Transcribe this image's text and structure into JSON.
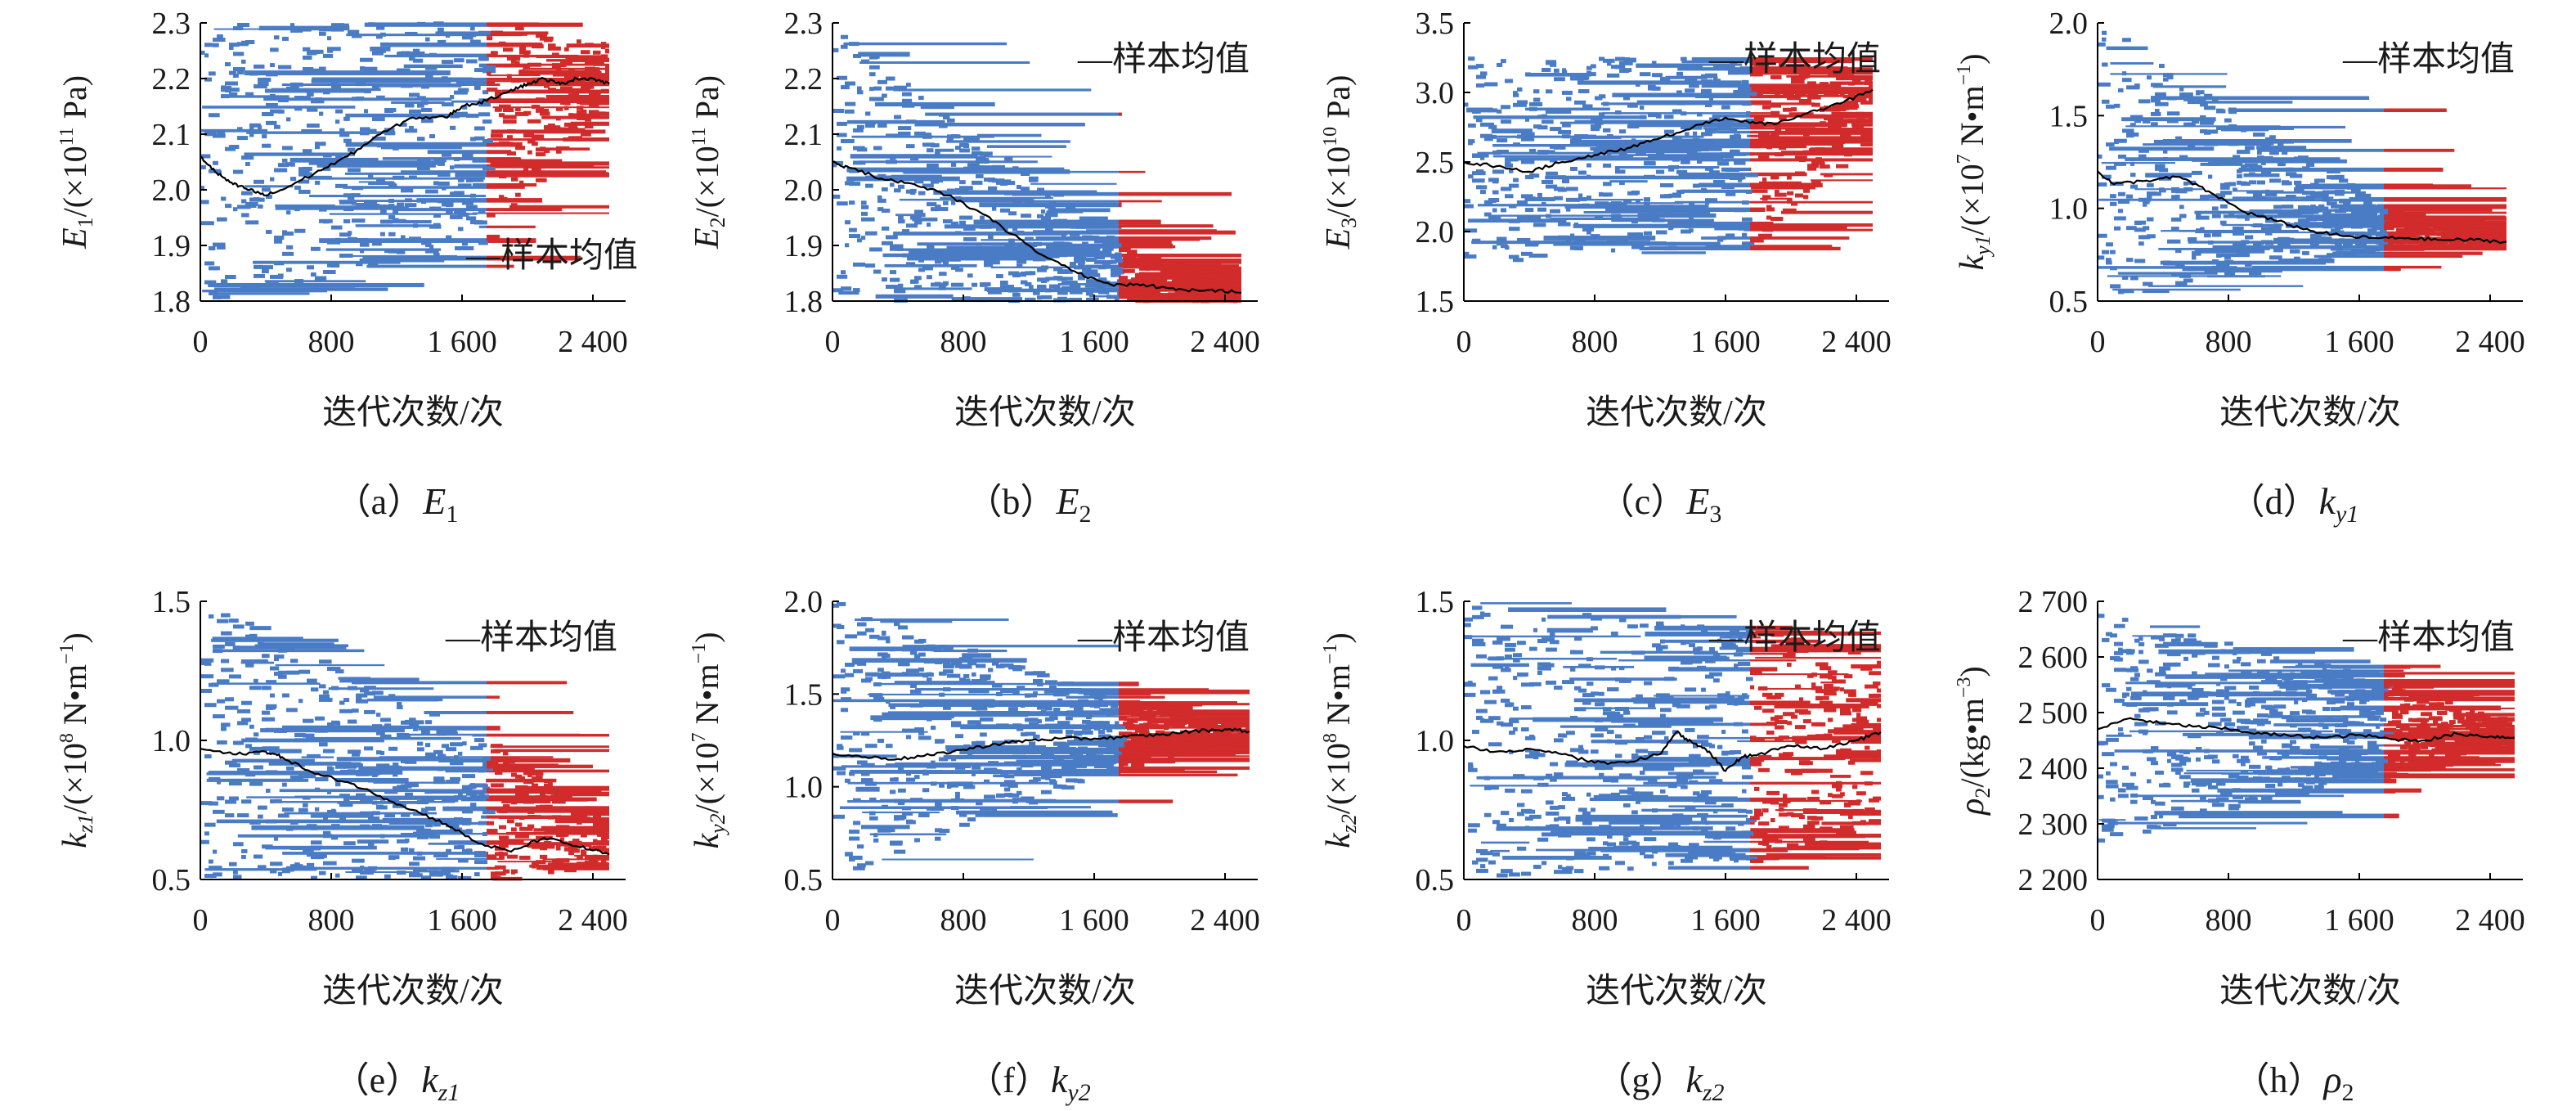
{
  "chart_data": [
    {
      "id": "a",
      "type": "line",
      "caption": {
        "prefix": "（a）",
        "symbol": "E",
        "sub": "1"
      },
      "ylabel": {
        "symbol": "E",
        "sub": "1",
        "unit": "/(×10",
        "exp": "11",
        "unit2": " Pa)"
      },
      "xlabel": "迭代次数/次",
      "ylim": [
        1.8,
        2.3
      ],
      "yticks": [
        "1.8",
        "1.9",
        "2.0",
        "2.1",
        "2.2",
        "2.3"
      ],
      "xlim": [
        0,
        2600
      ],
      "xticks": [
        0,
        800,
        1600,
        2400
      ],
      "xtick_labels": [
        "0",
        "800",
        "1 600",
        "2 400"
      ],
      "legend": {
        "label": "—样本均值",
        "position": "bottom-right"
      },
      "burn_in": 1750,
      "sample_spread": {
        "start": [
          1.8,
          2.3
        ],
        "burn_in": [
          1.9,
          2.3
        ],
        "end": [
          2.16,
          2.26
        ]
      },
      "series": [
        {
          "name": "样本均值",
          "color": "#000000",
          "x": [
            0,
            100,
            200,
            300,
            400,
            500,
            700,
            900,
            1100,
            1300,
            1500,
            1600,
            1750,
            1900,
            2000,
            2100,
            2200,
            2300,
            2400,
            2500
          ],
          "y": [
            2.06,
            2.03,
            2.01,
            2.0,
            1.99,
            2.0,
            2.03,
            2.06,
            2.1,
            2.13,
            2.13,
            2.15,
            2.16,
            2.18,
            2.19,
            2.2,
            2.19,
            2.2,
            2.2,
            2.19
          ]
        }
      ]
    },
    {
      "id": "b",
      "type": "line",
      "caption": {
        "prefix": "（b）",
        "symbol": "E",
        "sub": "2"
      },
      "ylabel": {
        "symbol": "E",
        "sub": "2",
        "unit": "/(×10",
        "exp": "11",
        "unit2": " Pa)"
      },
      "xlabel": "迭代次数/次",
      "ylim": [
        1.8,
        2.3
      ],
      "yticks": [
        "1.8",
        "1.9",
        "2.0",
        "2.1",
        "2.2",
        "2.3"
      ],
      "xlim": [
        0,
        2600
      ],
      "xticks": [
        0,
        800,
        1600,
        2400
      ],
      "xtick_labels": [
        "0",
        "800",
        "1 600",
        "2 400"
      ],
      "legend": {
        "label": "—样本均值",
        "position": "top-right"
      },
      "burn_in": 1750,
      "sample_spread": {
        "start": [
          1.8,
          2.3
        ],
        "burn_in": [
          1.8,
          1.9
        ],
        "end": [
          1.8,
          1.83
        ]
      },
      "series": [
        {
          "name": "样本均值",
          "color": "#000000",
          "x": [
            0,
            100,
            300,
            500,
            700,
            900,
            1100,
            1300,
            1500,
            1700,
            1900,
            2100,
            2300,
            2500
          ],
          "y": [
            2.05,
            2.04,
            2.02,
            2.01,
            1.99,
            1.96,
            1.92,
            1.88,
            1.85,
            1.83,
            1.83,
            1.82,
            1.82,
            1.815
          ]
        }
      ]
    },
    {
      "id": "c",
      "type": "line",
      "caption": {
        "prefix": "（c）",
        "symbol": "E",
        "sub": "3"
      },
      "ylabel": {
        "symbol": "E",
        "sub": "3",
        "unit": "/(×10",
        "exp": "10",
        "unit2": " Pa)"
      },
      "xlabel": "迭代次数/次",
      "ylim": [
        1.5,
        3.5
      ],
      "yticks": [
        "1.5",
        "2.0",
        "2.5",
        "3.0",
        "3.5"
      ],
      "xlim": [
        0,
        2600
      ],
      "xticks": [
        0,
        800,
        1600,
        2400
      ],
      "xtick_labels": [
        "0",
        "800",
        "1 600",
        "2 400"
      ],
      "legend": {
        "label": "—样本均值",
        "position": "top-right"
      },
      "burn_in": 1750,
      "sample_spread": {
        "start": [
          1.75,
          3.25
        ],
        "burn_in": [
          1.9,
          3.25
        ],
        "end": [
          2.7,
          3.1
        ]
      },
      "series": [
        {
          "name": "样本均值",
          "color": "#000000",
          "x": [
            0,
            200,
            400,
            600,
            800,
            1000,
            1200,
            1400,
            1600,
            1750,
            1900,
            2100,
            2300,
            2500
          ],
          "y": [
            2.5,
            2.47,
            2.43,
            2.5,
            2.55,
            2.6,
            2.67,
            2.75,
            2.82,
            2.78,
            2.77,
            2.85,
            2.92,
            3.02
          ]
        }
      ]
    },
    {
      "id": "d",
      "type": "line",
      "caption": {
        "prefix": "（d）",
        "symbol": "k",
        "sub": "y1"
      },
      "ylabel": {
        "symbol": "k",
        "sub": "y1",
        "unit": "/(×10",
        "exp": "7",
        "unit2": " N•m",
        "exp2": "−1",
        "unit3": ")"
      },
      "xlabel": "迭代次数/次",
      "ylim": [
        0.5,
        2.0
      ],
      "yticks": [
        "0.5",
        "1.0",
        "1.5",
        "2.0"
      ],
      "xlim": [
        0,
        2600
      ],
      "xticks": [
        0,
        800,
        1600,
        2400
      ],
      "xtick_labels": [
        "0",
        "800",
        "1 600",
        "2 400"
      ],
      "legend": {
        "label": "—样本均值",
        "position": "top-right"
      },
      "burn_in": 1750,
      "sample_spread": {
        "start": [
          0.5,
          2.0
        ],
        "burn_in": [
          0.78,
          1.0
        ],
        "end": [
          0.8,
          0.85
        ]
      },
      "series": [
        {
          "name": "样本均值",
          "color": "#000000",
          "x": [
            0,
            100,
            300,
            500,
            700,
            900,
            1100,
            1300,
            1500,
            1700,
            1900,
            2100,
            2300,
            2500
          ],
          "y": [
            1.2,
            1.13,
            1.15,
            1.17,
            1.08,
            0.98,
            0.93,
            0.88,
            0.85,
            0.84,
            0.84,
            0.83,
            0.83,
            0.82
          ]
        }
      ]
    },
    {
      "id": "e",
      "type": "line",
      "caption": {
        "prefix": "（e）",
        "symbol": "k",
        "sub": "z1"
      },
      "ylabel": {
        "symbol": "k",
        "sub": "z1",
        "unit": "/(×10",
        "exp": "8",
        "unit2": " N•m",
        "exp2": "−1",
        "unit3": ")"
      },
      "xlabel": "迭代次数/次",
      "ylim": [
        0.5,
        1.5
      ],
      "yticks": [
        "0.5",
        "1.0",
        "1.5"
      ],
      "xlim": [
        0,
        2600
      ],
      "xticks": [
        0,
        800,
        1600,
        2400
      ],
      "xtick_labels": [
        "0",
        "800",
        "1 600",
        "2 400"
      ],
      "legend": {
        "label": "—样本均值",
        "position": "top-right"
      },
      "burn_in": 1750,
      "sample_spread": {
        "start": [
          0.5,
          1.5
        ],
        "burn_in": [
          0.5,
          1.0
        ],
        "end": [
          0.55,
          0.7
        ]
      },
      "series": [
        {
          "name": "样本均值",
          "color": "#000000",
          "x": [
            0,
            200,
            400,
            500,
            700,
            900,
            1100,
            1300,
            1500,
            1700,
            1900,
            2100,
            2300,
            2500
          ],
          "y": [
            0.97,
            0.95,
            0.96,
            0.94,
            0.88,
            0.85,
            0.8,
            0.75,
            0.7,
            0.63,
            0.6,
            0.65,
            0.62,
            0.59
          ]
        }
      ]
    },
    {
      "id": "f",
      "type": "line",
      "caption": {
        "prefix": "（f）",
        "symbol": "k",
        "sub": "y2"
      },
      "ylabel": {
        "symbol": "k",
        "sub": "y2",
        "unit": "/(×10",
        "exp": "7",
        "unit2": " N•m",
        "exp2": "−1",
        "unit3": ")"
      },
      "xlabel": "迭代次数/次",
      "ylim": [
        0.5,
        2.0
      ],
      "yticks": [
        "0.5",
        "1.0",
        "1.5",
        "2.0"
      ],
      "xlim": [
        0,
        2600
      ],
      "xticks": [
        0,
        800,
        1600,
        2400
      ],
      "xtick_labels": [
        "0",
        "800",
        "1 600",
        "2 400"
      ],
      "legend": {
        "label": "—样本均值",
        "position": "top-right"
      },
      "burn_in": 1750,
      "sample_spread": {
        "start": [
          0.5,
          2.0
        ],
        "burn_in": [
          1.1,
          1.45
        ],
        "end": [
          1.28,
          1.32
        ]
      },
      "series": [
        {
          "name": "样本均值",
          "color": "#000000",
          "x": [
            0,
            200,
            400,
            600,
            800,
            1000,
            1200,
            1400,
            1600,
            1800,
            2000,
            2200,
            2400,
            2550
          ],
          "y": [
            1.18,
            1.16,
            1.15,
            1.17,
            1.2,
            1.23,
            1.25,
            1.26,
            1.26,
            1.27,
            1.28,
            1.3,
            1.31,
            1.3
          ]
        }
      ]
    },
    {
      "id": "g",
      "type": "line",
      "caption": {
        "prefix": "（g）",
        "symbol": "k",
        "sub": "z2"
      },
      "ylabel": {
        "symbol": "k",
        "sub": "z2",
        "unit": "/(×10",
        "exp": "8",
        "unit2": " N•m",
        "exp2": "−1",
        "unit3": ")"
      },
      "xlabel": "迭代次数/次",
      "ylim": [
        0.5,
        1.5
      ],
      "yticks": [
        "0.5",
        "1.0",
        "1.5"
      ],
      "xlim": [
        0,
        2600
      ],
      "xticks": [
        0,
        800,
        1600,
        2400
      ],
      "xtick_labels": [
        "0",
        "800",
        "1 600",
        "2 400"
      ],
      "legend": {
        "label": "—样本均值",
        "position": "top-right"
      },
      "burn_in": 1750,
      "sample_spread": {
        "start": [
          0.5,
          1.5
        ],
        "burn_in": [
          0.55,
          1.4
        ],
        "end": [
          0.7,
          1.3
        ]
      },
      "series": [
        {
          "name": "样本均值",
          "color": "#000000",
          "x": [
            0,
            200,
            400,
            600,
            800,
            1000,
            1200,
            1300,
            1400,
            1500,
            1600,
            1700,
            1800,
            2000,
            2200,
            2400,
            2550
          ],
          "y": [
            0.98,
            0.96,
            0.97,
            0.95,
            0.92,
            0.92,
            0.95,
            1.03,
            0.99,
            0.96,
            0.89,
            0.94,
            0.95,
            0.98,
            0.97,
            1.0,
            1.03
          ]
        }
      ]
    },
    {
      "id": "h",
      "type": "line",
      "caption": {
        "prefix": "（h）",
        "symbol": "ρ",
        "sub": "2"
      },
      "ylabel": {
        "symbol": "ρ",
        "sub": "2",
        "unit": "/(kg•m",
        "exp": "−3",
        "unit2": ")"
      },
      "xlabel": "迭代次数/次",
      "ylim": [
        2200,
        2700
      ],
      "yticks": [
        "2 200",
        "2 300",
        "2 400",
        "2 500",
        "2 600",
        "2 700"
      ],
      "xlim": [
        0,
        2600
      ],
      "xticks": [
        0,
        800,
        1600,
        2400
      ],
      "xtick_labels": [
        "0",
        "800",
        "1 600",
        "2 400"
      ],
      "legend": {
        "label": "—样本均值",
        "position": "top-right"
      },
      "burn_in": 1750,
      "sample_spread": {
        "start": [
          2260,
          2680
        ],
        "burn_in": [
          2400,
          2560
        ],
        "end": [
          2430,
          2480
        ]
      },
      "series": [
        {
          "name": "样本均值",
          "color": "#000000",
          "x": [
            0,
            200,
            400,
            600,
            800,
            1000,
            1200,
            1400,
            1600,
            1800,
            2000,
            2200,
            2400,
            2550
          ],
          "y": [
            2470,
            2490,
            2480,
            2475,
            2470,
            2462,
            2458,
            2455,
            2460,
            2452,
            2450,
            2462,
            2457,
            2455
          ]
        }
      ]
    }
  ],
  "colors": {
    "samples": "#4a7cc6",
    "post_burn_in": "#d22b2b",
    "mean_line": "#000000",
    "text": "#1a1a1a"
  }
}
